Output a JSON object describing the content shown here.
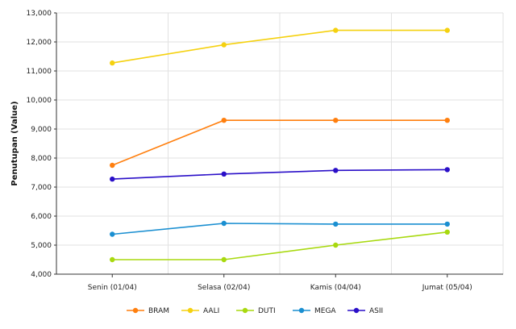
{
  "chart_data": {
    "type": "line",
    "title": "",
    "xlabel": "",
    "ylabel": "Penutupan (Value)",
    "categories": [
      "Senin (01/04)",
      "Selasa (02/04)",
      "Kamis (04/04)",
      "Jumat (05/04)"
    ],
    "ylim": [
      4000,
      13000
    ],
    "yticks": [
      4000,
      5000,
      6000,
      7000,
      8000,
      9000,
      10000,
      11000,
      12000,
      13000
    ],
    "ytick_labels": [
      "4,000",
      "5,000",
      "6,000",
      "7,000",
      "8,000",
      "9,000",
      "10,000",
      "11,000",
      "12,000",
      "13,000"
    ],
    "grid": true,
    "legend_position": "bottom",
    "series": [
      {
        "name": "BRAM",
        "color": "#ff7f0e",
        "values": [
          7750,
          9300,
          9300,
          9300
        ]
      },
      {
        "name": "AALI",
        "color": "#f5d10f",
        "values": [
          11275,
          11900,
          12400,
          12400
        ]
      },
      {
        "name": "DUTI",
        "color": "#a8d90f",
        "values": [
          4500,
          4500,
          5000,
          5450
        ]
      },
      {
        "name": "MEGA",
        "color": "#1a8fd1",
        "values": [
          5375,
          5750,
          5725,
          5725
        ]
      },
      {
        "name": "ASII",
        "color": "#2a0fc8",
        "values": [
          7275,
          7450,
          7575,
          7600
        ]
      }
    ]
  }
}
